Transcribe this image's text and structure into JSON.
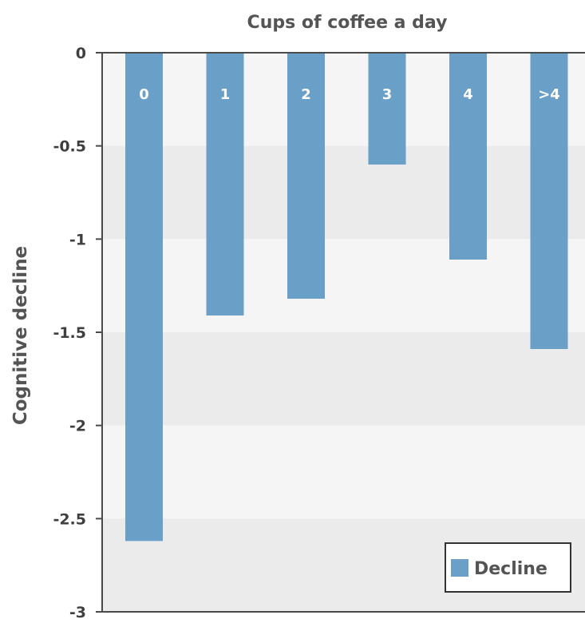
{
  "chart_data": {
    "type": "bar",
    "title": "Cups of coffee a day",
    "xlabel": "",
    "ylabel": "Cognitive decline",
    "categories": [
      "0",
      "1",
      "2",
      "3",
      "4",
      ">4"
    ],
    "series": [
      {
        "name": "Decline",
        "values": [
          -2.62,
          -1.41,
          -1.32,
          -0.6,
          -1.11,
          -1.59
        ]
      }
    ],
    "ylim": [
      -3,
      0
    ],
    "yticks": [
      "0",
      "-0.5",
      "-1",
      "-1.5",
      "-2",
      "-2.5",
      "-3"
    ],
    "grid": "alternating horizontal bands",
    "legend_position": "bottom-right",
    "colors": {
      "bar": "#6a9fc8",
      "band_dark": "#ebebeb",
      "band_light": "#f5f5f5",
      "axis": "#4a4a4a"
    }
  }
}
